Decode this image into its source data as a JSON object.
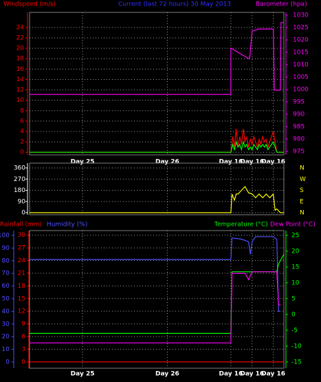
{
  "chart_data": [
    {
      "type": "line",
      "title": "Current (last 72 hours) 30 May 2013",
      "title_color": "#3030ff",
      "xlim": [
        0,
        72
      ],
      "xticks": [
        {
          "value": 15,
          "label": "Day 25"
        },
        {
          "value": 39,
          "label": "Day 26"
        },
        {
          "value": 57,
          "label": "Day 16"
        },
        {
          "value": 63,
          "label": "Day 16"
        },
        {
          "value": 69,
          "label": "Day 16"
        }
      ],
      "ylim": [
        -0.5,
        26.9
      ],
      "yticks": [
        0,
        2,
        4,
        6,
        8,
        10,
        12,
        14,
        16,
        18,
        20,
        22,
        24
      ],
      "ycolor": "#ff0000",
      "y2lim": [
        973.6,
        1031.1
      ],
      "y2ticks": [
        975,
        980,
        985,
        990,
        995,
        1000,
        1005,
        1010,
        1015,
        1020,
        1025,
        1030
      ],
      "y2color": "#ff00ff",
      "grid": true,
      "series": [
        {
          "name": "Windspeed (m/s)",
          "color": "#ff0000",
          "x": [
            0,
            57,
            57.5,
            58,
            58.5,
            59,
            59.5,
            60,
            60.5,
            61,
            61.5,
            62,
            62.5,
            63,
            63.5,
            64,
            64.5,
            65,
            65.5,
            66,
            66.5,
            67,
            67.5,
            68,
            68.5,
            69,
            69.5,
            70,
            72
          ],
          "values": [
            0,
            0,
            3,
            1,
            4.5,
            1,
            3,
            1.5,
            4.5,
            2,
            3,
            1,
            2.5,
            1.5,
            3,
            2,
            1,
            2.5,
            1.5,
            3,
            2,
            2.5,
            1,
            2,
            3,
            4,
            2,
            0,
            0
          ]
        },
        {
          "color": "#00ff00",
          "x": [
            0,
            57,
            57.5,
            58,
            58.5,
            59,
            59.5,
            60,
            60.5,
            61,
            61.5,
            62,
            62.5,
            63,
            63.5,
            64,
            64.5,
            65,
            65.5,
            66,
            66.5,
            67,
            67.5,
            68,
            68.5,
            69,
            69.5,
            70,
            72
          ],
          "values": [
            0,
            0,
            1.5,
            0.5,
            2,
            1,
            1.5,
            0.5,
            2,
            1,
            1.5,
            0.5,
            1,
            0.5,
            1.5,
            1,
            0.5,
            1.5,
            1,
            1.5,
            1,
            1.5,
            0.5,
            1,
            1.5,
            2,
            1,
            0,
            0
          ]
        },
        {
          "name": "Barometer (hpa)",
          "color": "#ff00ff",
          "axis": "y2",
          "x": [
            0,
            57,
            57,
            62,
            62.3,
            63,
            65,
            69,
            69.3,
            71,
            71.2,
            72
          ],
          "values": [
            998,
            998,
            1016.7,
            1012.5,
            1012.5,
            1023.6,
            1024.4,
            1024.4,
            999.7,
            999.7,
            1027,
            1027
          ]
        }
      ]
    },
    {
      "type": "line",
      "xlim": [
        0,
        72
      ],
      "xgrid": [
        15,
        39,
        57,
        63,
        69
      ],
      "ylim": [
        -16.6,
        398.8
      ],
      "yticks": [
        0,
        90,
        180,
        270,
        360
      ],
      "ycolor": "#ffffff",
      "y2lim": [
        -16.6,
        398.8
      ],
      "y2ticks": [
        {
          "value": 360,
          "label": "N"
        },
        {
          "value": 270,
          "label": "W"
        },
        {
          "value": 180,
          "label": "S"
        },
        {
          "value": 90,
          "label": "E"
        },
        {
          "value": 0,
          "label": "N"
        }
      ],
      "y2color": "#ffff00",
      "grid": true,
      "series": [
        {
          "color": "#ffff00",
          "x": [
            0,
            57,
            57.3,
            58,
            58.5,
            59,
            60,
            61,
            62,
            63,
            64,
            65,
            66,
            67,
            68,
            69,
            69.5,
            70,
            71,
            72
          ],
          "values": [
            0,
            0,
            150,
            100,
            150,
            150,
            180,
            210,
            160,
            150,
            120,
            150,
            120,
            150,
            120,
            150,
            20,
            30,
            0,
            0
          ]
        }
      ]
    },
    {
      "type": "line",
      "xlim": [
        0,
        72
      ],
      "xticks": [
        {
          "value": 15,
          "label": "Day 25"
        },
        {
          "value": 39,
          "label": "Day 26"
        },
        {
          "value": 57,
          "label": "Day 16"
        },
        {
          "value": 63,
          "label": "Day 16"
        },
        {
          "value": 69,
          "label": "Day 16"
        }
      ],
      "ylim": [
        -1.5,
        31.1
      ],
      "yticks": [
        0,
        3,
        6,
        9,
        12,
        15,
        18,
        21,
        24,
        27,
        30
      ],
      "ycolor": "#ff0000",
      "y3lim": [
        -4.9,
        103.8
      ],
      "y3ticks": [
        0,
        10,
        20,
        30,
        40,
        50,
        60,
        70,
        80,
        90,
        100
      ],
      "y3color": "#5050ff",
      "y2lim": [
        -17,
        26.5
      ],
      "y2ticks": [
        -15,
        -10,
        -5,
        0,
        5,
        10,
        15,
        20,
        25
      ],
      "y2color": "#00ff00",
      "grid": true,
      "series": [
        {
          "name": "Rainfall (mm)",
          "color": "#ff0000",
          "x": [
            0,
            72
          ],
          "values": [
            0,
            0
          ]
        },
        {
          "name": "Humidity (%)",
          "color": "#5050ff",
          "axis": "y3",
          "x": [
            0,
            57,
            57.3,
            60,
            62,
            62.5,
            63,
            64,
            66,
            69,
            70,
            70.5,
            71
          ],
          "values": [
            81,
            81,
            98,
            97,
            95,
            85,
            95,
            99,
            99,
            99,
            97,
            40,
            40
          ]
        },
        {
          "name": "Temperature (°C)",
          "color": "#00ff00",
          "axis": "y2",
          "x": [
            0,
            57,
            57.3,
            70,
            70.5,
            72
          ],
          "values": [
            -6,
            -6,
            13.5,
            13.5,
            16,
            19
          ]
        },
        {
          "name": "Dew Point (°C)",
          "color": "#ff00ff",
          "axis": "y2",
          "x": [
            0,
            57,
            57.3,
            61,
            62,
            63,
            70,
            70.5,
            71
          ],
          "values": [
            -9,
            -9,
            13,
            13,
            11,
            13.5,
            13.5,
            3,
            3
          ]
        }
      ]
    }
  ]
}
